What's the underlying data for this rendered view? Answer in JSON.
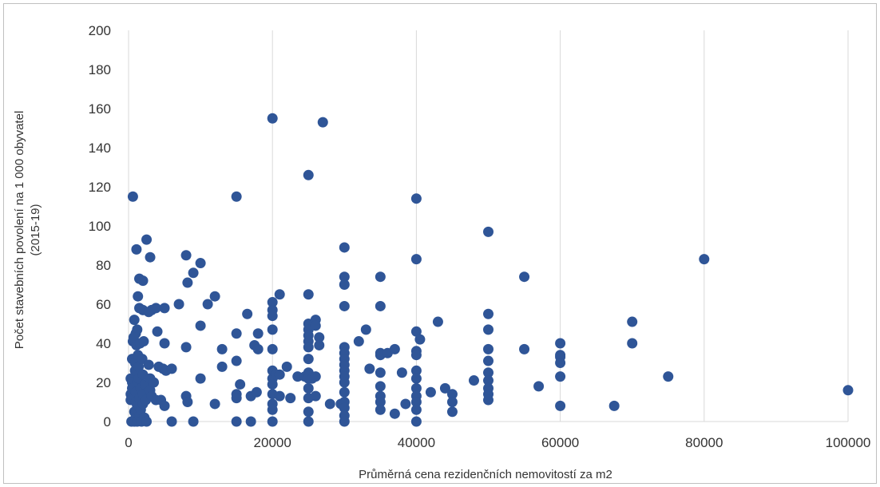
{
  "chart_data": {
    "type": "scatter",
    "title": "",
    "xlabel": "Průměrná cena rezidenčních nemovitostí za m2",
    "ylabel_lines": [
      "Počet stavebních povolení na  1 000 obyvatel",
      "(2015-19)"
    ],
    "xlim": [
      0,
      100000
    ],
    "ylim": [
      0,
      200
    ],
    "xticks": [
      0,
      20000,
      40000,
      60000,
      80000,
      100000
    ],
    "yticks": [
      0,
      20,
      40,
      60,
      80,
      100,
      120,
      140,
      160,
      180,
      200
    ],
    "grid": "vertical",
    "marker_color": "#2f5597",
    "gridline_color": "#d9d9d9",
    "points": [
      [
        600,
        115
      ],
      [
        800,
        52
      ],
      [
        1100,
        88
      ],
      [
        1300,
        64
      ],
      [
        1500,
        73
      ],
      [
        2000,
        72
      ],
      [
        2500,
        93
      ],
      [
        3000,
        84
      ],
      [
        1000,
        45
      ],
      [
        1200,
        47
      ],
      [
        1500,
        58
      ],
      [
        2000,
        57
      ],
      [
        2800,
        56
      ],
      [
        3200,
        57
      ],
      [
        3800,
        58
      ],
      [
        5000,
        58
      ],
      [
        7000,
        60
      ],
      [
        8000,
        85
      ],
      [
        8200,
        71
      ],
      [
        9000,
        76
      ],
      [
        10000,
        81
      ],
      [
        10000,
        49
      ],
      [
        11000,
        60
      ],
      [
        12000,
        64
      ],
      [
        13000,
        37
      ],
      [
        13000,
        28
      ],
      [
        15000,
        115
      ],
      [
        15000,
        45
      ],
      [
        15000,
        31
      ],
      [
        15000,
        14
      ],
      [
        15000,
        12
      ],
      [
        15000,
        0
      ],
      [
        15500,
        19
      ],
      [
        16500,
        55
      ],
      [
        17000,
        13
      ],
      [
        17000,
        0
      ],
      [
        17500,
        39
      ],
      [
        17800,
        15
      ],
      [
        18000,
        45
      ],
      [
        18000,
        37
      ],
      [
        20000,
        155
      ],
      [
        20000,
        61
      ],
      [
        20000,
        57
      ],
      [
        20000,
        54
      ],
      [
        20000,
        47
      ],
      [
        20000,
        37
      ],
      [
        20000,
        26
      ],
      [
        20000,
        22
      ],
      [
        20000,
        19
      ],
      [
        20000,
        14
      ],
      [
        20000,
        9
      ],
      [
        20000,
        6
      ],
      [
        20000,
        0
      ],
      [
        20500,
        24
      ],
      [
        21000,
        65
      ],
      [
        21000,
        24
      ],
      [
        21000,
        13
      ],
      [
        22000,
        28
      ],
      [
        22500,
        12
      ],
      [
        23500,
        23
      ],
      [
        24500,
        23
      ],
      [
        25000,
        126
      ],
      [
        25000,
        65
      ],
      [
        25000,
        50
      ],
      [
        25000,
        47
      ],
      [
        25000,
        44
      ],
      [
        25000,
        41
      ],
      [
        25000,
        38
      ],
      [
        25000,
        32
      ],
      [
        25000,
        25
      ],
      [
        25000,
        22
      ],
      [
        25000,
        17
      ],
      [
        25000,
        12
      ],
      [
        25000,
        5
      ],
      [
        25000,
        0
      ],
      [
        25500,
        22
      ],
      [
        26000,
        52
      ],
      [
        26000,
        49
      ],
      [
        26000,
        23
      ],
      [
        26000,
        13
      ],
      [
        26500,
        43
      ],
      [
        26500,
        39
      ],
      [
        27000,
        153
      ],
      [
        28000,
        9
      ],
      [
        29500,
        9
      ],
      [
        30000,
        89
      ],
      [
        30000,
        74
      ],
      [
        30000,
        70
      ],
      [
        30000,
        59
      ],
      [
        30000,
        38
      ],
      [
        30000,
        35
      ],
      [
        30000,
        32
      ],
      [
        30000,
        29
      ],
      [
        30000,
        26
      ],
      [
        30000,
        23
      ],
      [
        30000,
        20
      ],
      [
        30000,
        15
      ],
      [
        30000,
        10
      ],
      [
        30000,
        7
      ],
      [
        30000,
        3
      ],
      [
        30000,
        0
      ],
      [
        32000,
        41
      ],
      [
        33000,
        47
      ],
      [
        33500,
        27
      ],
      [
        35000,
        74
      ],
      [
        35000,
        59
      ],
      [
        35000,
        35
      ],
      [
        35000,
        34
      ],
      [
        35000,
        25
      ],
      [
        35000,
        18
      ],
      [
        35000,
        13
      ],
      [
        35000,
        10
      ],
      [
        35000,
        6
      ],
      [
        36000,
        35
      ],
      [
        37000,
        4
      ],
      [
        37000,
        37
      ],
      [
        38000,
        25
      ],
      [
        38500,
        9
      ],
      [
        40000,
        114
      ],
      [
        40000,
        83
      ],
      [
        40000,
        46
      ],
      [
        40000,
        36
      ],
      [
        40000,
        34
      ],
      [
        40000,
        26
      ],
      [
        40000,
        22
      ],
      [
        40000,
        17
      ],
      [
        40000,
        13
      ],
      [
        40000,
        10
      ],
      [
        40000,
        6
      ],
      [
        40000,
        0
      ],
      [
        40500,
        42
      ],
      [
        42000,
        15
      ],
      [
        43000,
        51
      ],
      [
        44000,
        17
      ],
      [
        45000,
        14
      ],
      [
        45000,
        10
      ],
      [
        45000,
        5
      ],
      [
        48000,
        21
      ],
      [
        50000,
        97
      ],
      [
        50000,
        55
      ],
      [
        50000,
        47
      ],
      [
        50000,
        37
      ],
      [
        50000,
        31
      ],
      [
        50000,
        25
      ],
      [
        50000,
        21
      ],
      [
        50000,
        17
      ],
      [
        50000,
        14
      ],
      [
        50000,
        11
      ],
      [
        55000,
        74
      ],
      [
        55000,
        37
      ],
      [
        57000,
        18
      ],
      [
        60000,
        40
      ],
      [
        60000,
        34
      ],
      [
        60000,
        33
      ],
      [
        60000,
        30
      ],
      [
        60000,
        23
      ],
      [
        60000,
        8
      ],
      [
        67500,
        8
      ],
      [
        70000,
        51
      ],
      [
        70000,
        40
      ],
      [
        75000,
        23
      ],
      [
        80000,
        83
      ],
      [
        100000,
        16
      ],
      [
        300,
        22
      ],
      [
        300,
        14
      ],
      [
        300,
        11
      ],
      [
        400,
        0
      ],
      [
        500,
        32
      ],
      [
        500,
        20
      ],
      [
        500,
        17
      ],
      [
        600,
        41
      ],
      [
        700,
        43
      ],
      [
        800,
        5
      ],
      [
        800,
        0
      ],
      [
        900,
        30
      ],
      [
        900,
        26
      ],
      [
        1000,
        15
      ],
      [
        1000,
        10
      ],
      [
        1000,
        2
      ],
      [
        1100,
        39
      ],
      [
        1200,
        20
      ],
      [
        1200,
        8
      ],
      [
        1200,
        0
      ],
      [
        1300,
        34
      ],
      [
        1400,
        28
      ],
      [
        1400,
        22
      ],
      [
        1500,
        12
      ],
      [
        1500,
        3
      ],
      [
        1600,
        40
      ],
      [
        1700,
        17
      ],
      [
        1700,
        6
      ],
      [
        1800,
        0
      ],
      [
        1900,
        32
      ],
      [
        2000,
        24
      ],
      [
        2000,
        14
      ],
      [
        2000,
        9
      ],
      [
        2100,
        41
      ],
      [
        2200,
        2
      ],
      [
        2300,
        19
      ],
      [
        2400,
        11
      ],
      [
        2500,
        0
      ],
      [
        2800,
        29
      ],
      [
        3000,
        22
      ],
      [
        3000,
        16
      ],
      [
        3200,
        13
      ],
      [
        3500,
        20
      ],
      [
        3800,
        11
      ],
      [
        4000,
        46
      ],
      [
        4200,
        28
      ],
      [
        4500,
        11
      ],
      [
        4800,
        27
      ],
      [
        5000,
        40
      ],
      [
        5000,
        8
      ],
      [
        5200,
        26
      ],
      [
        6000,
        27
      ],
      [
        6000,
        0
      ],
      [
        8000,
        38
      ],
      [
        8000,
        13
      ],
      [
        8200,
        10
      ],
      [
        9000,
        0
      ],
      [
        10000,
        22
      ],
      [
        12000,
        9
      ]
    ]
  }
}
